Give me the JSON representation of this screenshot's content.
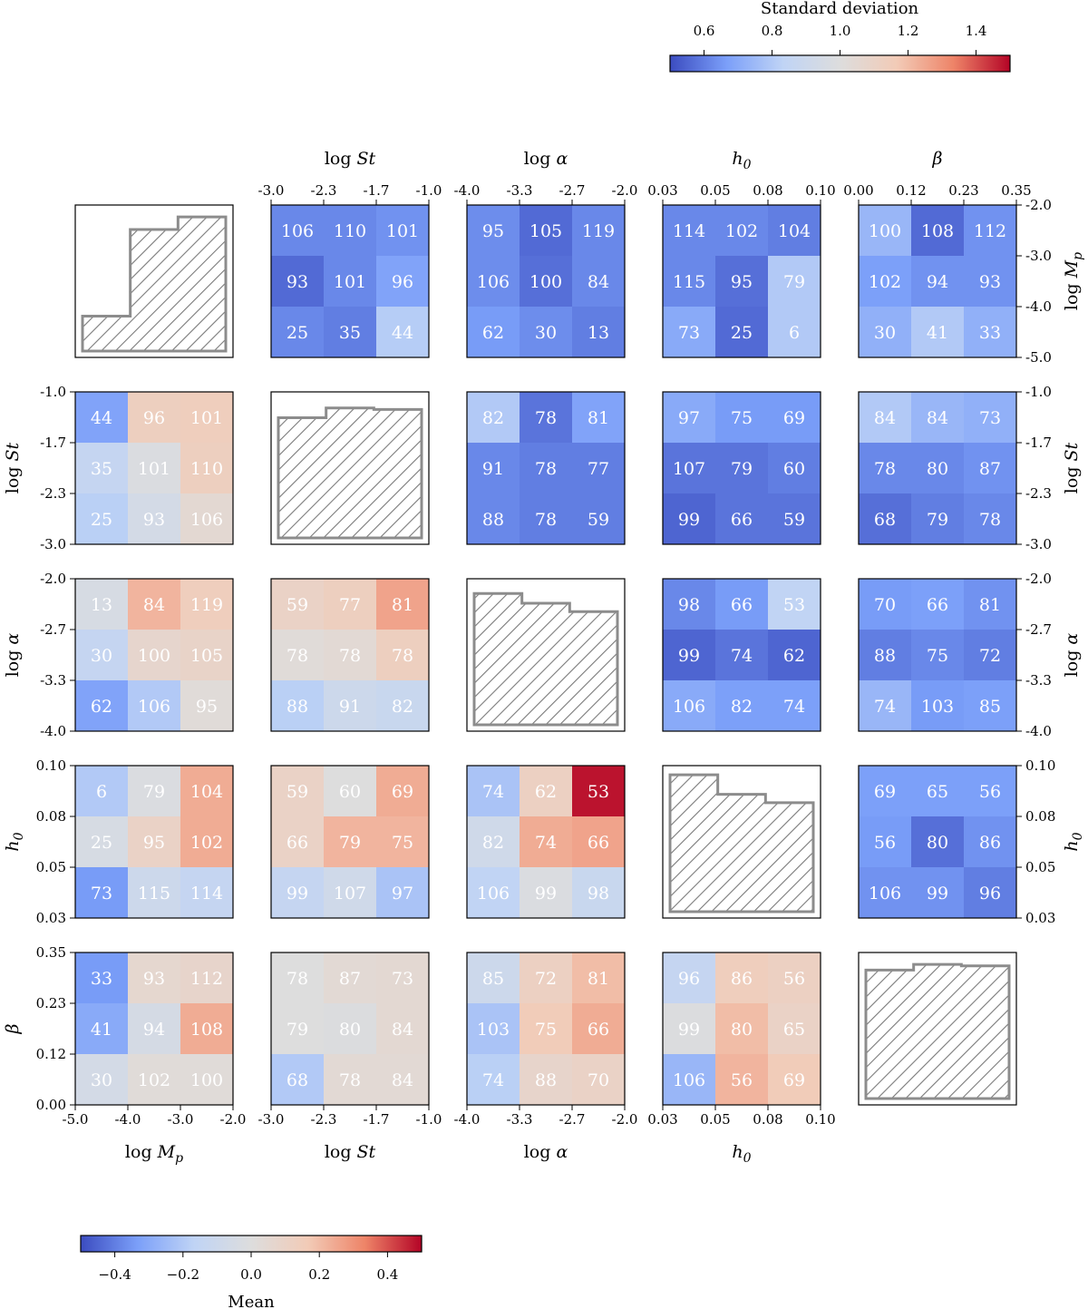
{
  "chart_data": {
    "type": "heatmap",
    "description_layout": "corner",
    "parameters": [
      {
        "key": "Mp",
        "label": "log Mp",
        "label_prefix": "log",
        "symbol": "M",
        "sub": "p",
        "ticks": [
          "-5.0",
          "-4.0",
          "-3.0",
          "-2.0"
        ]
      },
      {
        "key": "St",
        "label": "log St",
        "label_prefix": "log",
        "symbol": "St",
        "sub": "",
        "ticks": [
          "-3.0",
          "-2.3",
          "-1.7",
          "-1.0"
        ]
      },
      {
        "key": "alpha",
        "label": "log α",
        "label_prefix": "log",
        "symbol": "α",
        "sub": "",
        "ticks": [
          "-4.0",
          "-3.3",
          "-2.7",
          "-2.0"
        ]
      },
      {
        "key": "h0",
        "label": "h0",
        "label_prefix": "",
        "symbol": "h",
        "sub": "0",
        "ticks": [
          "0.03",
          "0.05",
          "0.08",
          "0.10"
        ]
      },
      {
        "key": "beta",
        "label": "β",
        "label_prefix": "",
        "symbol": "β",
        "sub": "",
        "ticks": [
          "0.00",
          "0.12",
          "0.23",
          "0.35"
        ]
      }
    ],
    "upper_panels": [
      {
        "row": 0,
        "col": 1,
        "counts": [
          [
            106,
            110,
            101
          ],
          [
            93,
            101,
            96
          ],
          [
            25,
            35,
            44
          ]
        ],
        "std": [
          [
            0.62,
            0.62,
            0.64
          ],
          [
            0.56,
            0.62,
            0.68
          ],
          [
            0.62,
            0.6,
            0.81
          ]
        ]
      },
      {
        "row": 0,
        "col": 2,
        "counts": [
          [
            95,
            105,
            119
          ],
          [
            106,
            100,
            84
          ],
          [
            62,
            30,
            13
          ]
        ],
        "std": [
          [
            0.63,
            0.56,
            0.62
          ],
          [
            0.63,
            0.57,
            0.62
          ],
          [
            0.66,
            0.63,
            0.6
          ]
        ]
      },
      {
        "row": 0,
        "col": 3,
        "counts": [
          [
            114,
            102,
            104
          ],
          [
            115,
            95,
            79
          ],
          [
            73,
            25,
            6
          ]
        ],
        "std": [
          [
            0.62,
            0.62,
            0.6
          ],
          [
            0.62,
            0.57,
            0.8
          ],
          [
            0.7,
            0.56,
            0.8
          ]
        ]
      },
      {
        "row": 0,
        "col": 4,
        "counts": [
          [
            100,
            108,
            112
          ],
          [
            102,
            94,
            93
          ],
          [
            30,
            41,
            33
          ]
        ],
        "std": [
          [
            0.74,
            0.56,
            0.64
          ],
          [
            0.67,
            0.64,
            0.64
          ],
          [
            0.72,
            0.8,
            0.72
          ]
        ]
      },
      {
        "row": 1,
        "col": 2,
        "counts": [
          [
            82,
            78,
            81
          ],
          [
            91,
            78,
            77
          ],
          [
            88,
            78,
            59
          ]
        ],
        "std": [
          [
            0.8,
            0.58,
            0.68
          ],
          [
            0.62,
            0.6,
            0.6
          ],
          [
            0.62,
            0.6,
            0.6
          ]
        ]
      },
      {
        "row": 1,
        "col": 3,
        "counts": [
          [
            97,
            75,
            69
          ],
          [
            107,
            79,
            60
          ],
          [
            99,
            66,
            59
          ]
        ],
        "std": [
          [
            0.7,
            0.66,
            0.66
          ],
          [
            0.58,
            0.58,
            0.6
          ],
          [
            0.55,
            0.58,
            0.58
          ]
        ]
      },
      {
        "row": 1,
        "col": 4,
        "counts": [
          [
            84,
            84,
            73
          ],
          [
            78,
            80,
            87
          ],
          [
            68,
            79,
            78
          ]
        ],
        "std": [
          [
            0.8,
            0.74,
            0.72
          ],
          [
            0.62,
            0.62,
            0.64
          ],
          [
            0.57,
            0.6,
            0.62
          ]
        ]
      },
      {
        "row": 2,
        "col": 3,
        "counts": [
          [
            98,
            66,
            53
          ],
          [
            99,
            74,
            62
          ],
          [
            106,
            82,
            74
          ]
        ],
        "std": [
          [
            0.62,
            0.66,
            0.84
          ],
          [
            0.55,
            0.58,
            0.55
          ],
          [
            0.7,
            0.67,
            0.67
          ]
        ]
      },
      {
        "row": 2,
        "col": 4,
        "counts": [
          [
            70,
            66,
            81
          ],
          [
            88,
            75,
            72
          ],
          [
            74,
            103,
            85
          ]
        ],
        "std": [
          [
            0.66,
            0.67,
            0.64
          ],
          [
            0.6,
            0.62,
            0.6
          ],
          [
            0.74,
            0.66,
            0.67
          ]
        ]
      },
      {
        "row": 3,
        "col": 4,
        "counts": [
          [
            69,
            65,
            56
          ],
          [
            56,
            80,
            86
          ],
          [
            106,
            99,
            96
          ]
        ],
        "std": [
          [
            0.67,
            0.67,
            0.67
          ],
          [
            0.66,
            0.57,
            0.64
          ],
          [
            0.64,
            0.64,
            0.6
          ]
        ]
      }
    ],
    "lower_panels": [
      {
        "row": 1,
        "col": 0,
        "counts": [
          [
            44,
            96,
            101
          ],
          [
            35,
            101,
            110
          ],
          [
            25,
            93,
            106
          ]
        ],
        "mean": [
          [
            -0.32,
            0.13,
            0.14
          ],
          [
            -0.14,
            -0.02,
            0.13
          ],
          [
            -0.18,
            -0.06,
            0.05
          ]
        ]
      },
      {
        "row": 2,
        "col": 0,
        "counts": [
          [
            13,
            84,
            119
          ],
          [
            30,
            100,
            105
          ],
          [
            62,
            106,
            95
          ]
        ],
        "mean": [
          [
            -0.04,
            0.22,
            0.14
          ],
          [
            -0.14,
            0.07,
            0.09
          ],
          [
            -0.32,
            -0.2,
            0.02
          ]
        ]
      },
      {
        "row": 2,
        "col": 1,
        "counts": [
          [
            59,
            77,
            81
          ],
          [
            78,
            78,
            78
          ],
          [
            88,
            91,
            82
          ]
        ],
        "mean": [
          [
            0.1,
            0.13,
            0.26
          ],
          [
            0.02,
            0.04,
            0.13
          ],
          [
            -0.18,
            -0.1,
            -0.12
          ]
        ]
      },
      {
        "row": 3,
        "col": 0,
        "counts": [
          [
            6,
            79,
            104
          ],
          [
            25,
            95,
            102
          ],
          [
            73,
            115,
            114
          ]
        ],
        "mean": [
          [
            -0.2,
            -0.02,
            0.24
          ],
          [
            -0.04,
            0.1,
            0.24
          ],
          [
            -0.34,
            -0.1,
            -0.14
          ]
        ]
      },
      {
        "row": 3,
        "col": 1,
        "counts": [
          [
            59,
            60,
            69
          ],
          [
            66,
            79,
            75
          ],
          [
            99,
            107,
            97
          ]
        ],
        "mean": [
          [
            0.1,
            0.0,
            0.24
          ],
          [
            0.1,
            0.22,
            0.22
          ],
          [
            -0.14,
            -0.08,
            -0.22
          ]
        ]
      },
      {
        "row": 3,
        "col": 2,
        "counts": [
          [
            74,
            62,
            53
          ],
          [
            82,
            74,
            66
          ],
          [
            106,
            99,
            98
          ]
        ],
        "mean": [
          [
            -0.22,
            0.12,
            0.48
          ],
          [
            -0.08,
            0.24,
            0.26
          ],
          [
            -0.16,
            -0.02,
            -0.12
          ]
        ]
      },
      {
        "row": 4,
        "col": 0,
        "counts": [
          [
            33,
            93,
            112
          ],
          [
            41,
            94,
            108
          ],
          [
            30,
            102,
            100
          ]
        ],
        "mean": [
          [
            -0.34,
            0.06,
            0.08
          ],
          [
            -0.3,
            -0.05,
            0.24
          ],
          [
            -0.06,
            0.02,
            0.02
          ]
        ]
      },
      {
        "row": 4,
        "col": 1,
        "counts": [
          [
            78,
            87,
            73
          ],
          [
            79,
            80,
            84
          ],
          [
            68,
            78,
            84
          ]
        ],
        "mean": [
          [
            0.0,
            0.04,
            0.05
          ],
          [
            0.0,
            -0.01,
            0.05
          ],
          [
            -0.2,
            0.04,
            0.04
          ]
        ]
      },
      {
        "row": 4,
        "col": 2,
        "counts": [
          [
            85,
            72,
            81
          ],
          [
            103,
            75,
            66
          ],
          [
            74,
            88,
            70
          ]
        ],
        "mean": [
          [
            -0.1,
            0.12,
            0.2
          ],
          [
            -0.22,
            0.16,
            0.24
          ],
          [
            -0.18,
            0.08,
            0.1
          ]
        ]
      },
      {
        "row": 4,
        "col": 3,
        "counts": [
          [
            96,
            86,
            56
          ],
          [
            99,
            80,
            65
          ],
          [
            106,
            56,
            69
          ]
        ],
        "mean": [
          [
            -0.14,
            0.14,
            0.12
          ],
          [
            -0.01,
            0.2,
            0.1
          ],
          [
            -0.26,
            0.22,
            0.16
          ]
        ]
      }
    ],
    "diagonal_histograms": [
      {
        "index": 0,
        "heights": [
          0.25,
          0.87,
          0.96
        ]
      },
      {
        "index": 1,
        "heights": [
          0.86,
          0.93,
          0.92
        ]
      },
      {
        "index": 2,
        "heights": [
          0.94,
          0.87,
          0.81
        ]
      },
      {
        "index": 3,
        "heights": [
          0.98,
          0.84,
          0.78
        ]
      },
      {
        "index": 4,
        "heights": [
          0.92,
          0.96,
          0.95
        ]
      }
    ],
    "colorbars": {
      "std": {
        "title": "Standard deviation",
        "range": [
          0.5,
          1.5
        ],
        "ticks": [
          0.6,
          0.8,
          1.0,
          1.2,
          1.4
        ],
        "tick_labels": [
          "0.6",
          "0.8",
          "1.0",
          "1.2",
          "1.4"
        ]
      },
      "mean": {
        "title": "Mean",
        "range": [
          -0.5,
          0.5
        ],
        "ticks": [
          -0.4,
          -0.2,
          0.0,
          0.2,
          0.4
        ],
        "tick_labels": [
          "−0.4",
          "−0.2",
          "0.0",
          "0.2",
          "0.4"
        ]
      }
    },
    "colormap": "coolwarm",
    "colormap_stops": [
      "#3b4cc0",
      "#7b9ff9",
      "#c0d4f5",
      "#dddddd",
      "#f2cbb7",
      "#ee8468",
      "#b40426"
    ]
  }
}
